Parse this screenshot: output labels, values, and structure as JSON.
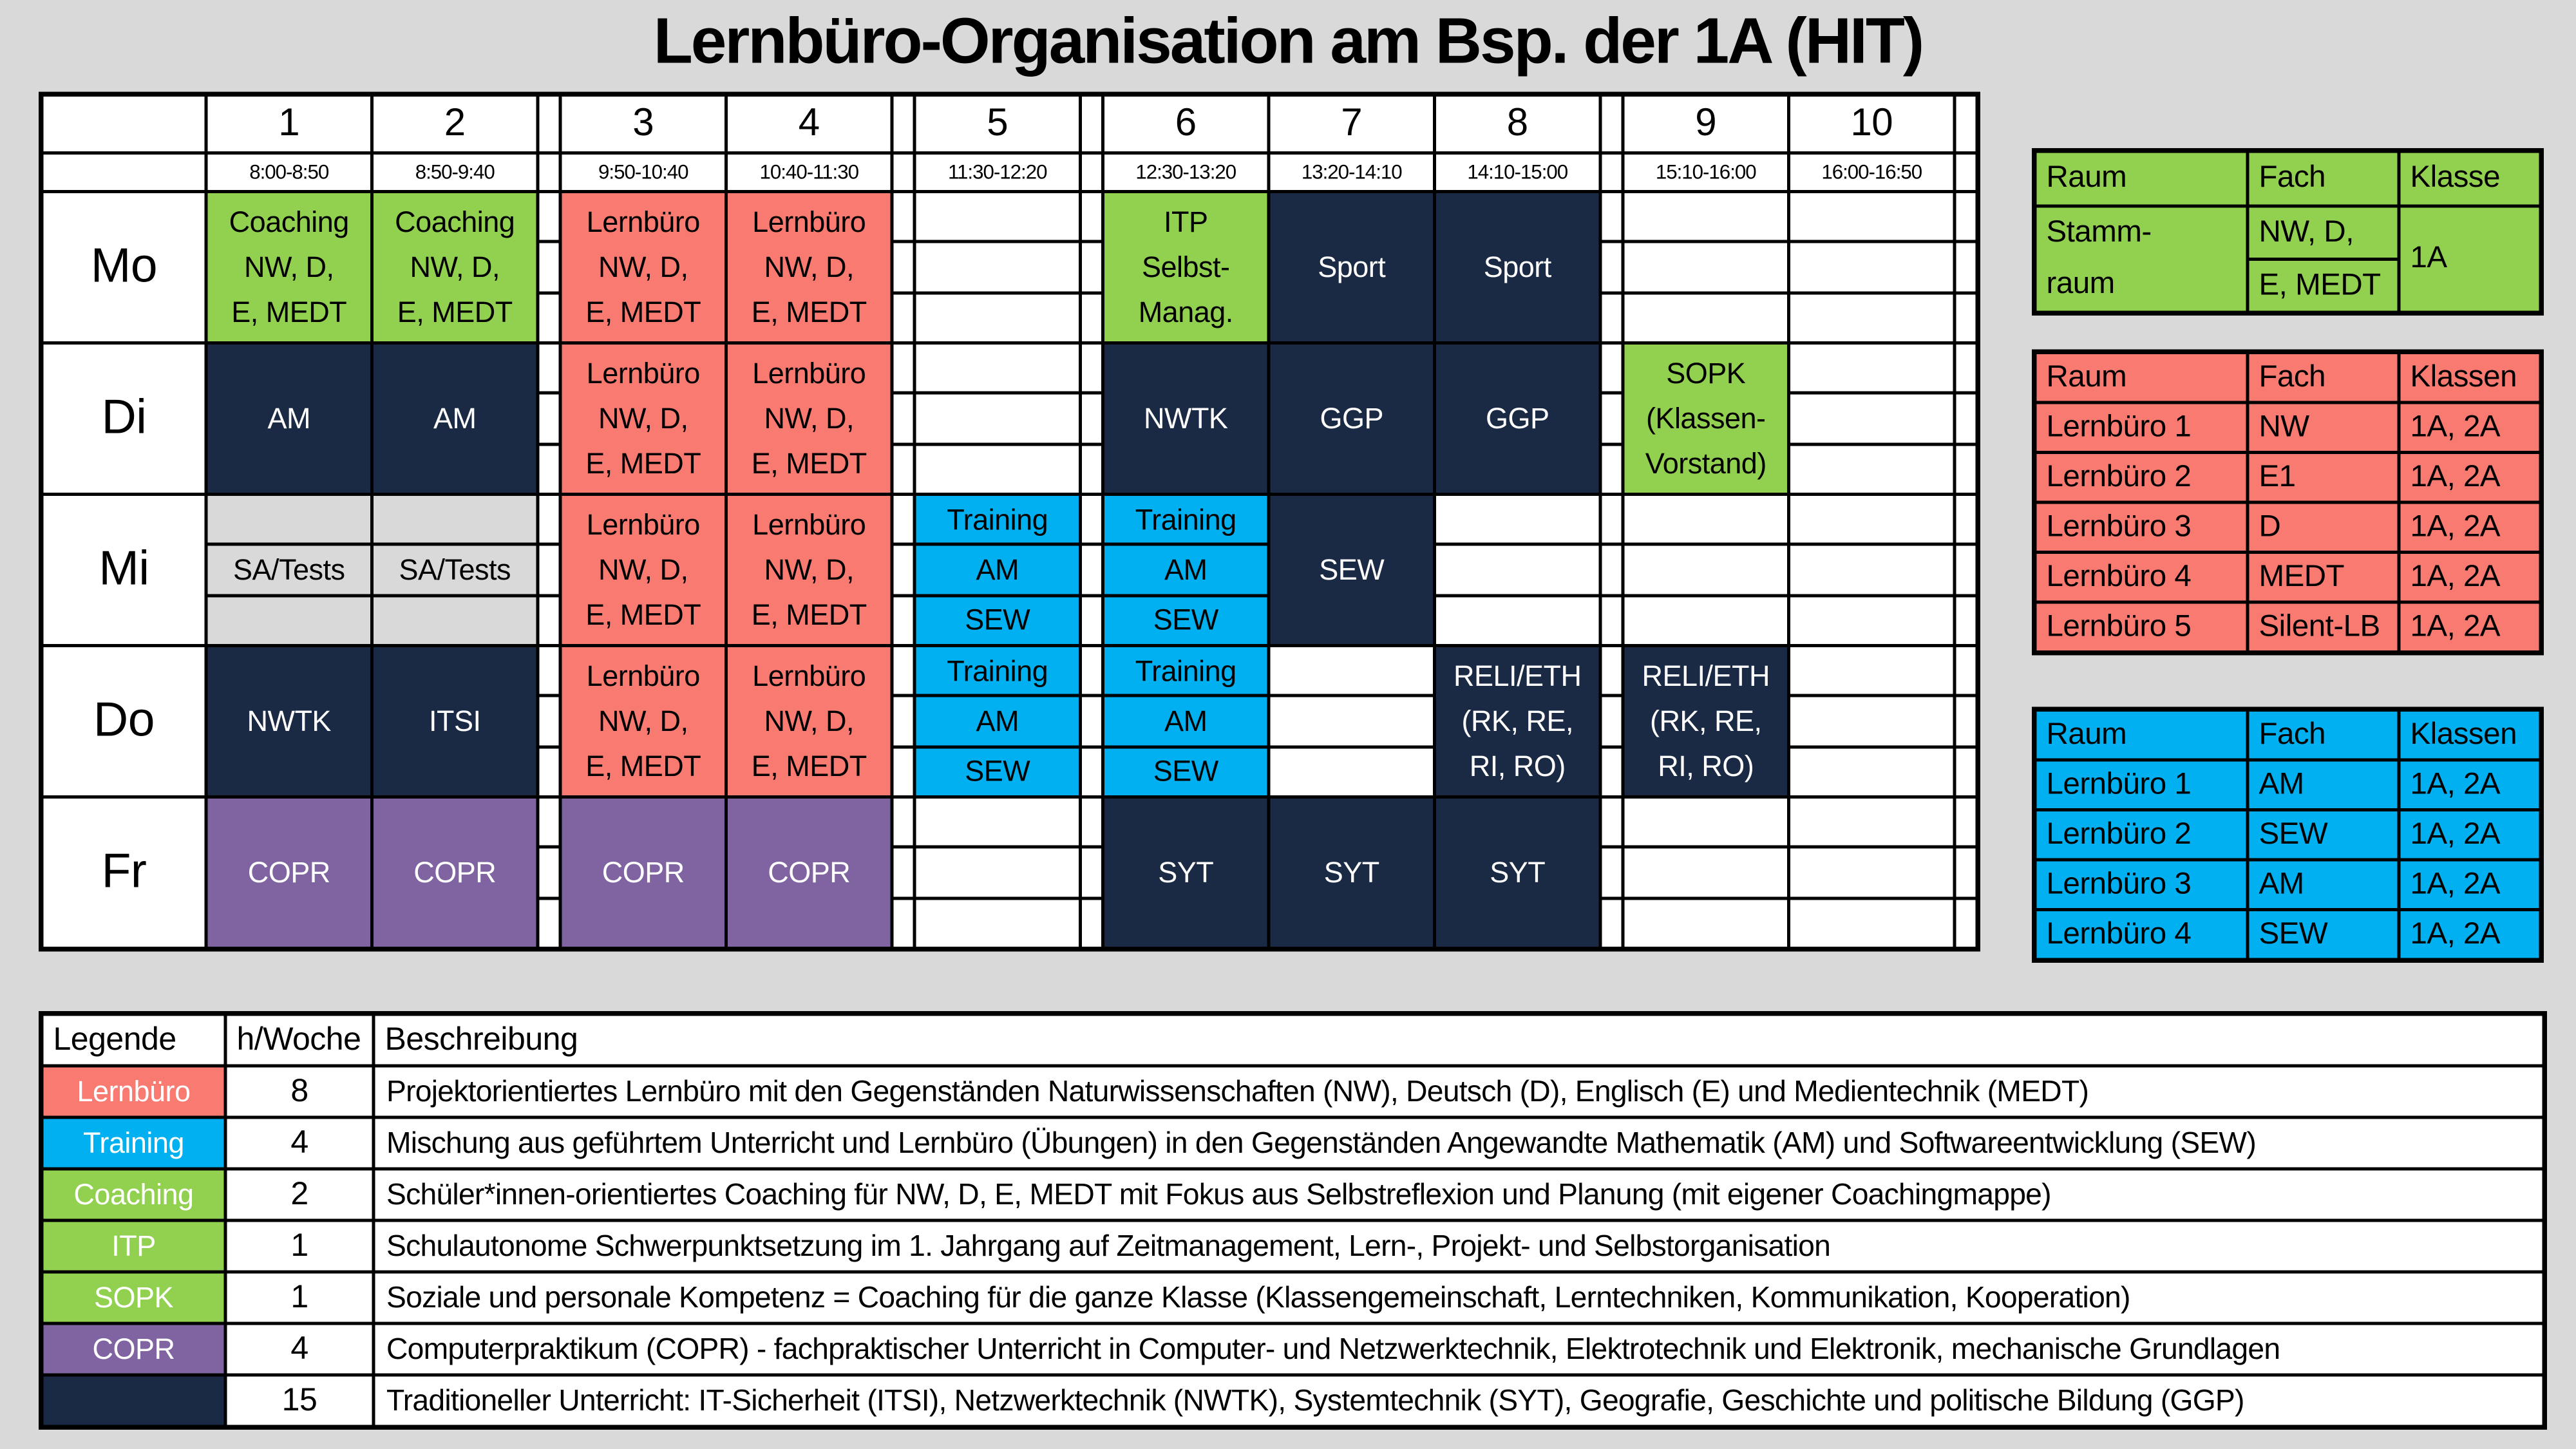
{
  "title": "Lernbüro-Organisation am Bsp. der 1A (HIT)",
  "colors": {
    "page_bg": "#d9d9d9",
    "green": "#92d050",
    "red": "#f87a70",
    "blue": "#00b0f0",
    "navy": "#1b2a44",
    "purple": "#8064a2",
    "gray": "#d9d9d9",
    "white": "#ffffff",
    "border": "#000000"
  },
  "timetable": {
    "periods": [
      {
        "num": "1",
        "time": "8:00-8:50"
      },
      {
        "num": "2",
        "time": "8:50-9:40"
      },
      {
        "num": "3",
        "time": "9:50-10:40"
      },
      {
        "num": "4",
        "time": "10:40-11:30"
      },
      {
        "num": "5",
        "time": "11:30-12:20"
      },
      {
        "num": "6",
        "time": "12:30-13:20"
      },
      {
        "num": "7",
        "time": "13:20-14:10"
      },
      {
        "num": "8",
        "time": "14:10-15:00"
      },
      {
        "num": "9",
        "time": "15:10-16:00"
      },
      {
        "num": "10",
        "time": "16:00-16:50"
      }
    ],
    "gaps_after": [
      "2",
      "4",
      "5",
      "8",
      "10"
    ],
    "days": [
      {
        "label": "Mo",
        "cells": [
          {
            "kind": "block",
            "bg": "green",
            "lines": [
              "Coaching",
              "NW, D,",
              "E, MEDT"
            ]
          },
          {
            "kind": "block",
            "bg": "green",
            "lines": [
              "Coaching",
              "NW, D,",
              "E, MEDT"
            ]
          },
          {
            "kind": "block",
            "bg": "red",
            "lines": [
              "Lernbüro",
              "NW, D,",
              "E, MEDT"
            ]
          },
          {
            "kind": "block",
            "bg": "red",
            "lines": [
              "Lernbüro",
              "NW, D,",
              "E, MEDT"
            ]
          },
          {
            "kind": "empty"
          },
          {
            "kind": "block",
            "bg": "green",
            "lines": [
              "ITP",
              "Selbst-",
              "Manag."
            ]
          },
          {
            "kind": "block",
            "bg": "navy",
            "lines": [
              "Sport"
            ]
          },
          {
            "kind": "block",
            "bg": "navy",
            "lines": [
              "Sport"
            ]
          },
          {
            "kind": "empty"
          },
          {
            "kind": "empty"
          }
        ]
      },
      {
        "label": "Di",
        "cells": [
          {
            "kind": "block",
            "bg": "navy",
            "lines": [
              "AM"
            ]
          },
          {
            "kind": "block",
            "bg": "navy",
            "lines": [
              "AM"
            ]
          },
          {
            "kind": "block",
            "bg": "red",
            "lines": [
              "Lernbüro",
              "NW, D,",
              "E, MEDT"
            ]
          },
          {
            "kind": "block",
            "bg": "red",
            "lines": [
              "Lernbüro",
              "NW, D,",
              "E, MEDT"
            ]
          },
          {
            "kind": "empty"
          },
          {
            "kind": "block",
            "bg": "navy",
            "lines": [
              "NWTK"
            ]
          },
          {
            "kind": "block",
            "bg": "navy",
            "lines": [
              "GGP"
            ]
          },
          {
            "kind": "block",
            "bg": "navy",
            "lines": [
              "GGP"
            ]
          },
          {
            "kind": "block",
            "bg": "green",
            "lines": [
              "SOPK",
              "(Klassen-",
              "Vorstand)"
            ]
          },
          {
            "kind": "empty"
          }
        ]
      },
      {
        "label": "Mi",
        "cells": [
          {
            "kind": "mid",
            "bg": "gray",
            "lines": [
              "SA/Tests"
            ]
          },
          {
            "kind": "mid",
            "bg": "gray",
            "lines": [
              "SA/Tests"
            ]
          },
          {
            "kind": "block",
            "bg": "red",
            "lines": [
              "Lernbüro",
              "NW, D,",
              "E, MEDT"
            ]
          },
          {
            "kind": "block",
            "bg": "red",
            "lines": [
              "Lernbüro",
              "NW, D,",
              "E, MEDT"
            ]
          },
          {
            "kind": "stack",
            "bg": "blue",
            "lines": [
              "Training",
              "AM",
              "SEW"
            ]
          },
          {
            "kind": "stack",
            "bg": "blue",
            "lines": [
              "Training",
              "AM",
              "SEW"
            ]
          },
          {
            "kind": "block",
            "bg": "navy",
            "lines": [
              "SEW"
            ]
          },
          {
            "kind": "empty"
          },
          {
            "kind": "empty"
          },
          {
            "kind": "empty"
          }
        ]
      },
      {
        "label": "Do",
        "cells": [
          {
            "kind": "block",
            "bg": "navy",
            "lines": [
              "NWTK"
            ]
          },
          {
            "kind": "block",
            "bg": "navy",
            "lines": [
              "ITSI"
            ]
          },
          {
            "kind": "block",
            "bg": "red",
            "lines": [
              "Lernbüro",
              "NW, D,",
              "E, MEDT"
            ]
          },
          {
            "kind": "block",
            "bg": "red",
            "lines": [
              "Lernbüro",
              "NW, D,",
              "E, MEDT"
            ]
          },
          {
            "kind": "stack",
            "bg": "blue",
            "lines": [
              "Training",
              "AM",
              "SEW"
            ]
          },
          {
            "kind": "stack",
            "bg": "blue",
            "lines": [
              "Training",
              "AM",
              "SEW"
            ]
          },
          {
            "kind": "empty"
          },
          {
            "kind": "block",
            "bg": "navy",
            "lines": [
              "RELI/ETH",
              "(RK, RE,",
              "RI, RO)"
            ]
          },
          {
            "kind": "block",
            "bg": "navy",
            "lines": [
              "RELI/ETH",
              "(RK, RE,",
              "RI, RO)"
            ]
          },
          {
            "kind": "empty"
          }
        ]
      },
      {
        "label": "Fr",
        "cells": [
          {
            "kind": "block",
            "bg": "purple",
            "lines": [
              "COPR"
            ]
          },
          {
            "kind": "block",
            "bg": "purple",
            "lines": [
              "COPR"
            ]
          },
          {
            "kind": "block",
            "bg": "purple",
            "lines": [
              "COPR"
            ]
          },
          {
            "kind": "block",
            "bg": "purple",
            "lines": [
              "COPR"
            ]
          },
          {
            "kind": "empty"
          },
          {
            "kind": "block",
            "bg": "navy",
            "lines": [
              "SYT"
            ]
          },
          {
            "kind": "block",
            "bg": "navy",
            "lines": [
              "SYT"
            ]
          },
          {
            "kind": "block",
            "bg": "navy",
            "lines": [
              "SYT"
            ]
          },
          {
            "kind": "empty"
          },
          {
            "kind": "empty"
          }
        ]
      }
    ]
  },
  "stammraum_table": {
    "headers": [
      "Raum",
      "Fach",
      "Klasse"
    ],
    "raum_lines": [
      "Stamm-",
      "raum"
    ],
    "fach_lines": [
      "NW, D,",
      "E, MEDT"
    ],
    "klasse": "1A"
  },
  "lernbuero_table": {
    "headers": [
      "Raum",
      "Fach",
      "Klassen"
    ],
    "rows": [
      [
        "Lernbüro 1",
        "NW",
        "1A, 2A"
      ],
      [
        "Lernbüro 2",
        "E1",
        "1A, 2A"
      ],
      [
        "Lernbüro 3",
        "D",
        "1A, 2A"
      ],
      [
        "Lernbüro 4",
        "MEDT",
        "1A, 2A"
      ],
      [
        "Lernbüro 5",
        "Silent-LB",
        "1A, 2A"
      ]
    ]
  },
  "training_table": {
    "headers": [
      "Raum",
      "Fach",
      "Klassen"
    ],
    "rows": [
      [
        "Lernbüro 1",
        "AM",
        "1A, 2A"
      ],
      [
        "Lernbüro 2",
        "SEW",
        "1A, 2A"
      ],
      [
        "Lernbüro 3",
        "AM",
        "1A, 2A"
      ],
      [
        "Lernbüro 4",
        "SEW",
        "1A, 2A"
      ]
    ]
  },
  "legend": {
    "headers": [
      "Legende",
      "h/Woche",
      "Beschreibung"
    ],
    "rows": [
      {
        "label": "Lernbüro",
        "bg": "red",
        "hours": "8",
        "desc": "Projektorientiertes Lernbüro mit den Gegenständen Naturwissenschaften (NW), Deutsch (D), Englisch (E) und Medientechnik (MEDT)"
      },
      {
        "label": "Training",
        "bg": "blue",
        "hours": "4",
        "desc": "Mischung aus geführtem Unterricht und Lernbüro (Übungen) in den Gegenständen Angewandte Mathematik (AM) und Softwareentwicklung (SEW)"
      },
      {
        "label": "Coaching",
        "bg": "green",
        "hours": "2",
        "desc": "Schüler*innen-orientiertes Coaching für NW, D, E, MEDT mit Fokus aus Selbstreflexion und Planung (mit eigener Coachingmappe)"
      },
      {
        "label": "ITP",
        "bg": "green",
        "hours": "1",
        "desc": "Schulautonome Schwerpunktsetzung im 1. Jahrgang auf Zeitmanagement, Lern-, Projekt- und Selbstorganisation"
      },
      {
        "label": "SOPK",
        "bg": "green",
        "hours": "1",
        "desc": "Soziale und personale Kompetenz  = Coaching für die ganze Klasse (Klassengemeinschaft, Lerntechniken, Kommunikation, Kooperation)"
      },
      {
        "label": "COPR",
        "bg": "purple",
        "hours": "4",
        "desc": "Computerpraktikum (COPR) - fachpraktischer Unterricht in Computer- und Netzwerktechnik, Elektrotechnik und Elektronik, mechanische Grundlagen"
      },
      {
        "label": "",
        "bg": "navy",
        "hours": "15",
        "desc": "Traditioneller Unterricht: IT-Sicherheit (ITSI), Netzwerktechnik (NWTK), Systemtechnik (SYT), Geografie, Geschichte und politische Bildung (GGP)"
      }
    ]
  }
}
